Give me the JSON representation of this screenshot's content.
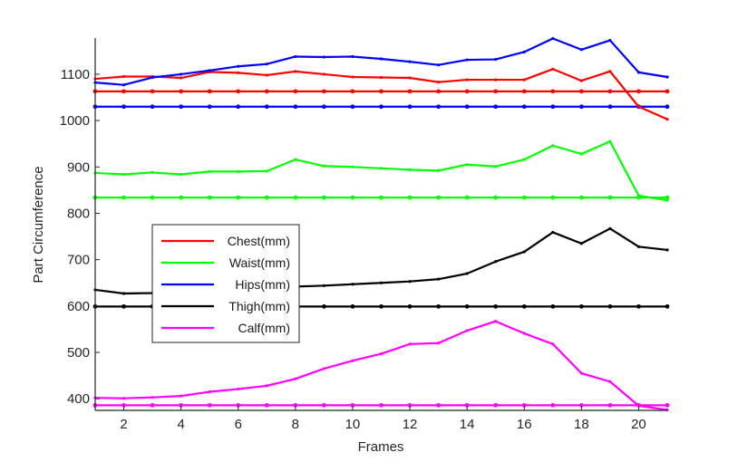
{
  "chart_data": {
    "type": "line",
    "title": "",
    "xlabel": "Frames",
    "ylabel": "Part Circumference",
    "xlim": [
      1,
      21
    ],
    "ylim": [
      375,
      1178
    ],
    "xticks": [
      2,
      4,
      6,
      8,
      10,
      12,
      14,
      16,
      18,
      20
    ],
    "yticks": [
      400,
      500,
      600,
      700,
      800,
      900,
      1000,
      1100
    ],
    "grid": false,
    "legend_position": "center-left",
    "x": [
      1,
      2,
      3,
      4,
      5,
      6,
      7,
      8,
      9,
      10,
      11,
      12,
      13,
      14,
      15,
      16,
      17,
      18,
      19,
      20,
      21
    ],
    "series": [
      {
        "name": "Chest(mm)",
        "color": "#ff0000",
        "values": [
          1090,
          1095,
          1095,
          1092,
          1105,
          1103,
          1098,
          1106,
          1100,
          1094,
          1093,
          1092,
          1083,
          1088,
          1088,
          1088,
          1111,
          1086,
          1106,
          1030,
          1003
        ]
      },
      {
        "name": "Waist(mm)",
        "color": "#00ff00",
        "values": [
          887,
          884,
          888,
          884,
          890,
          890,
          891,
          916,
          902,
          900,
          897,
          894,
          892,
          905,
          901,
          916,
          946,
          928,
          955,
          838,
          828
        ]
      },
      {
        "name": "Hips(mm)",
        "color": "#0000ff",
        "values": [
          1082,
          1077,
          1093,
          1100,
          1108,
          1117,
          1122,
          1138,
          1137,
          1138,
          1133,
          1127,
          1120,
          1131,
          1132,
          1148,
          1177,
          1153,
          1173,
          1104,
          1094
        ]
      },
      {
        "name": "Thigh(mm)",
        "color": "#000000",
        "values": [
          635,
          627,
          628,
          632,
          636,
          640,
          641,
          642,
          644,
          647,
          650,
          653,
          658,
          670,
          696,
          717,
          759,
          735,
          767,
          728,
          721
        ]
      },
      {
        "name": "Calf(mm)",
        "color": "#ff00ff",
        "values": [
          402,
          401,
          403,
          406,
          415,
          421,
          428,
          443,
          465,
          482,
          497,
          518,
          520,
          547,
          567,
          541,
          518,
          455,
          437,
          385,
          376
        ]
      }
    ],
    "reference_lines": [
      {
        "color": "#ff0000",
        "value": 1063
      },
      {
        "color": "#0000ff",
        "value": 1030
      },
      {
        "color": "#00ff00",
        "value": 834
      },
      {
        "color": "#000000",
        "value": 599
      },
      {
        "color": "#ff00ff",
        "value": 386
      }
    ]
  }
}
